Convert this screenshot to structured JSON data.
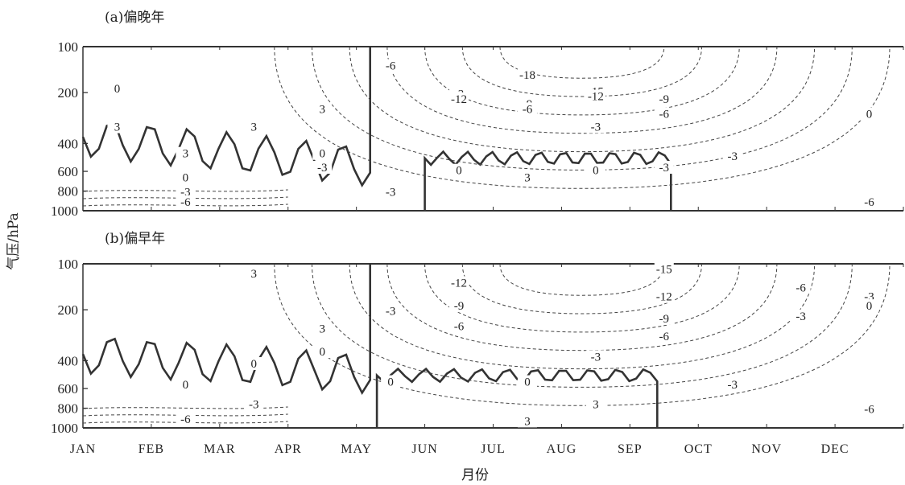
{
  "chart_data": [
    {
      "type": "contour",
      "title": "(a)偏晚年",
      "xlabel": "月份",
      "ylabel": "气压/hPa",
      "x_categories": [
        "JAN",
        "FEB",
        "MAR",
        "APR",
        "MAY",
        "JUN",
        "JUL",
        "AUG",
        "SEP",
        "OCT",
        "NOV",
        "DEC"
      ],
      "y_ticks": [
        100,
        200,
        400,
        600,
        800,
        1000
      ],
      "y_scale": "pressure (log-like, 100 top to 1000 bottom)",
      "ylim": [
        1000,
        100
      ],
      "contour_interval": 3,
      "positive_contours": "solid",
      "negative_contours": "dashed",
      "zero_contour": "thick solid",
      "contour_labels": [
        {
          "month": "JAN",
          "pressure": 200,
          "value": "0"
        },
        {
          "month": "JAN",
          "pressure": 350,
          "value": "3"
        },
        {
          "month": "FEB",
          "pressure": 500,
          "value": "3"
        },
        {
          "month": "MAR",
          "pressure": 350,
          "value": "3"
        },
        {
          "month": "APR",
          "pressure": 280,
          "value": "3"
        },
        {
          "month": "FEB",
          "pressure": 700,
          "value": "0"
        },
        {
          "month": "FEB",
          "pressure": 850,
          "value": "-3"
        },
        {
          "month": "FEB",
          "pressure": 950,
          "value": "-6"
        },
        {
          "month": "APR",
          "pressure": 500,
          "value": "0"
        },
        {
          "month": "APR",
          "pressure": 600,
          "value": "-3"
        },
        {
          "month": "MAY",
          "pressure": 150,
          "value": "-6"
        },
        {
          "month": "MAY",
          "pressure": 850,
          "value": "-3"
        },
        {
          "month": "JUN",
          "pressure": 220,
          "value": "-3"
        },
        {
          "month": "JUL",
          "pressure": 170,
          "value": "-18"
        },
        {
          "month": "JUN",
          "pressure": 240,
          "value": "-12"
        },
        {
          "month": "JUL",
          "pressure": 260,
          "value": "-9"
        },
        {
          "month": "JUL",
          "pressure": 280,
          "value": "-6"
        },
        {
          "month": "AUG",
          "pressure": 210,
          "value": "-15"
        },
        {
          "month": "AUG",
          "pressure": 230,
          "value": "-12"
        },
        {
          "month": "AUG",
          "pressure": 350,
          "value": "-3"
        },
        {
          "month": "SEP",
          "pressure": 240,
          "value": "-9"
        },
        {
          "month": "SEP",
          "pressure": 300,
          "value": "-6"
        },
        {
          "month": "JUN",
          "pressure": 630,
          "value": "0"
        },
        {
          "month": "JUL",
          "pressure": 700,
          "value": "3"
        },
        {
          "month": "AUG",
          "pressure": 630,
          "value": "0"
        },
        {
          "month": "SEP",
          "pressure": 600,
          "value": "-3"
        },
        {
          "month": "OCT",
          "pressure": 520,
          "value": "-3"
        },
        {
          "month": "DEC",
          "pressure": 300,
          "value": "0"
        },
        {
          "month": "DEC",
          "pressure": 950,
          "value": "-6"
        }
      ]
    },
    {
      "type": "contour",
      "title": "(b)偏早年",
      "xlabel": "月份",
      "ylabel": "气压/hPa",
      "x_categories": [
        "JAN",
        "FEB",
        "MAR",
        "APR",
        "MAY",
        "JUN",
        "JUL",
        "AUG",
        "SEP",
        "OCT",
        "NOV",
        "DEC"
      ],
      "y_ticks": [
        100,
        200,
        400,
        600,
        800,
        1000
      ],
      "y_scale": "pressure (log-like, 100 top to 1000 bottom)",
      "ylim": [
        1000,
        100
      ],
      "contour_interval": 3,
      "positive_contours": "solid",
      "negative_contours": "dashed",
      "zero_contour": "thick solid",
      "contour_labels": [
        {
          "month": "MAR",
          "pressure": 130,
          "value": "3"
        },
        {
          "month": "APR",
          "pressure": 290,
          "value": "3"
        },
        {
          "month": "APR",
          "pressure": 380,
          "value": "0"
        },
        {
          "month": "MAR",
          "pressure": 450,
          "value": "0"
        },
        {
          "month": "FEB",
          "pressure": 600,
          "value": "0"
        },
        {
          "month": "MAR",
          "pressure": 800,
          "value": "-3"
        },
        {
          "month": "FEB",
          "pressure": 950,
          "value": "-6"
        },
        {
          "month": "MAY",
          "pressure": 220,
          "value": "-3"
        },
        {
          "month": "JUN",
          "pressure": 150,
          "value": "-12"
        },
        {
          "month": "JUN",
          "pressure": 200,
          "value": "-9"
        },
        {
          "month": "JUN",
          "pressure": 280,
          "value": "-6"
        },
        {
          "month": "MAY",
          "pressure": 580,
          "value": "0"
        },
        {
          "month": "JUL",
          "pressure": 580,
          "value": "0"
        },
        {
          "month": "AUG",
          "pressure": 400,
          "value": "-3"
        },
        {
          "month": "SEP",
          "pressure": 120,
          "value": "-15"
        },
        {
          "month": "SEP",
          "pressure": 180,
          "value": "-12"
        },
        {
          "month": "SEP",
          "pressure": 250,
          "value": "-9"
        },
        {
          "month": "SEP",
          "pressure": 320,
          "value": "-6"
        },
        {
          "month": "AUG",
          "pressure": 800,
          "value": "3"
        },
        {
          "month": "JUL",
          "pressure": 970,
          "value": "3"
        },
        {
          "month": "OCT",
          "pressure": 600,
          "value": "-3"
        },
        {
          "month": "NOV",
          "pressure": 160,
          "value": "-6"
        },
        {
          "month": "NOV",
          "pressure": 240,
          "value": "-3"
        },
        {
          "month": "DEC",
          "pressure": 180,
          "value": "-3"
        },
        {
          "month": "DEC",
          "pressure": 200,
          "value": "0"
        },
        {
          "month": "DEC",
          "pressure": 850,
          "value": "-6"
        }
      ]
    }
  ],
  "shared": {
    "ylabel": "气压/hPa",
    "xlabel": "月份"
  }
}
